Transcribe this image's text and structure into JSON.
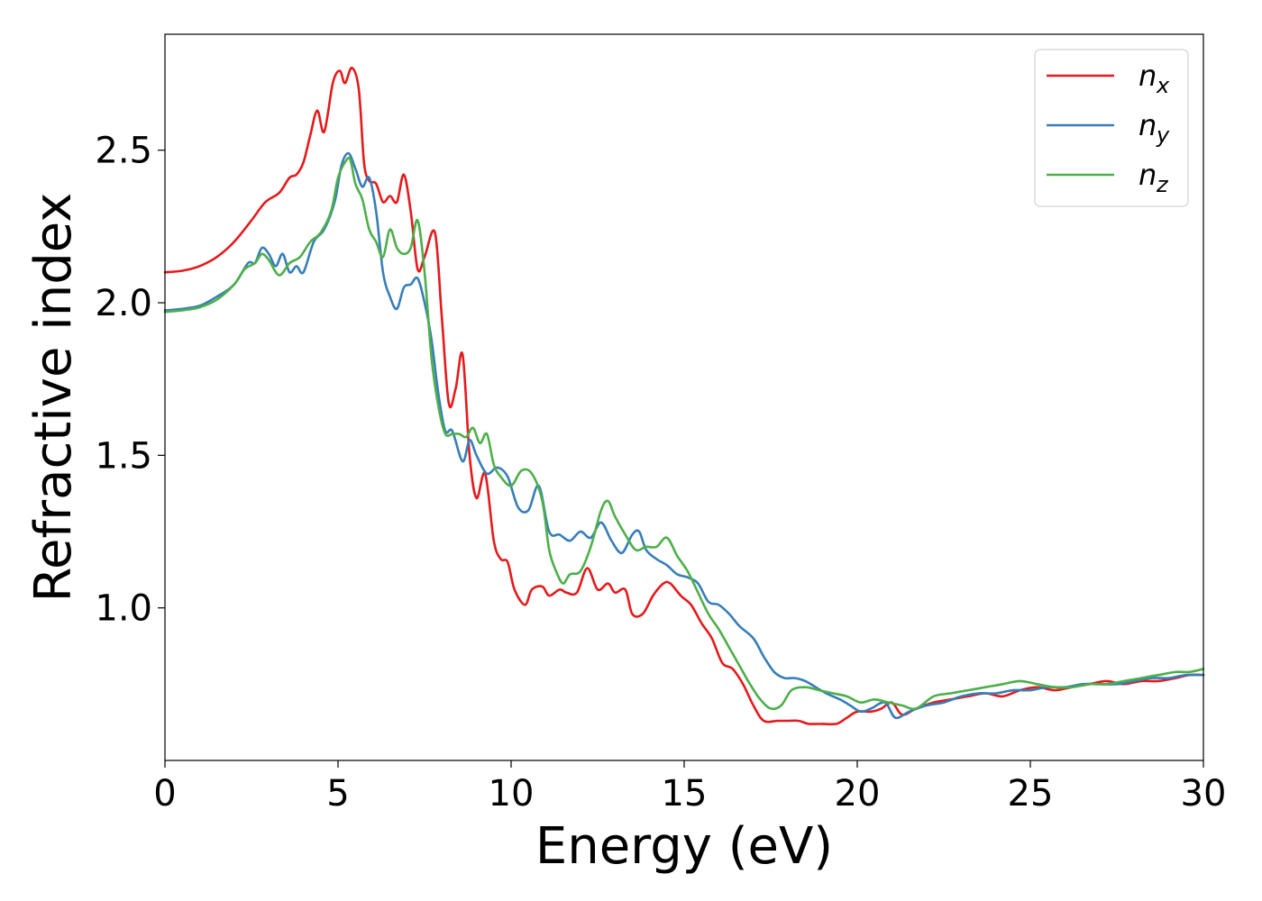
{
  "chart_data": {
    "type": "line",
    "xlabel": "Energy (eV)",
    "ylabel": "Refractive index",
    "xlim": [
      0,
      30
    ],
    "ylim": [
      0.5,
      2.88
    ],
    "x_ticks": [
      0,
      5,
      10,
      15,
      20,
      25,
      30
    ],
    "y_ticks": [
      1.0,
      1.5,
      2.0,
      2.5
    ],
    "x_tick_labels": [
      "0",
      "5",
      "10",
      "15",
      "20",
      "25",
      "30"
    ],
    "y_tick_labels": [
      "1.0",
      "1.5",
      "2.0",
      "2.5"
    ],
    "grid": false,
    "legend_position": "top-right",
    "series": [
      {
        "name": "n",
        "subscript": "x",
        "color": "#e41a1c",
        "points": [
          [
            0,
            2.1
          ],
          [
            0.5,
            2.105
          ],
          [
            1.0,
            2.12
          ],
          [
            1.5,
            2.15
          ],
          [
            2.0,
            2.2
          ],
          [
            2.5,
            2.27
          ],
          [
            2.9,
            2.33
          ],
          [
            3.3,
            2.36
          ],
          [
            3.6,
            2.41
          ],
          [
            3.8,
            2.42
          ],
          [
            4.0,
            2.46
          ],
          [
            4.2,
            2.55
          ],
          [
            4.4,
            2.63
          ],
          [
            4.6,
            2.56
          ],
          [
            4.85,
            2.72
          ],
          [
            5.05,
            2.76
          ],
          [
            5.2,
            2.72
          ],
          [
            5.4,
            2.77
          ],
          [
            5.6,
            2.7
          ],
          [
            5.75,
            2.46
          ],
          [
            5.9,
            2.4
          ],
          [
            6.1,
            2.39
          ],
          [
            6.3,
            2.33
          ],
          [
            6.5,
            2.35
          ],
          [
            6.7,
            2.33
          ],
          [
            6.9,
            2.42
          ],
          [
            7.1,
            2.3
          ],
          [
            7.3,
            2.11
          ],
          [
            7.5,
            2.15
          ],
          [
            7.8,
            2.23
          ],
          [
            8.0,
            1.95
          ],
          [
            8.2,
            1.67
          ],
          [
            8.4,
            1.72
          ],
          [
            8.6,
            1.83
          ],
          [
            8.8,
            1.5
          ],
          [
            9.0,
            1.36
          ],
          [
            9.25,
            1.44
          ],
          [
            9.5,
            1.22
          ],
          [
            9.7,
            1.16
          ],
          [
            9.9,
            1.15
          ],
          [
            10.1,
            1.06
          ],
          [
            10.4,
            1.01
          ],
          [
            10.6,
            1.06
          ],
          [
            10.9,
            1.07
          ],
          [
            11.1,
            1.04
          ],
          [
            11.4,
            1.06
          ],
          [
            11.6,
            1.05
          ],
          [
            11.9,
            1.05
          ],
          [
            12.2,
            1.13
          ],
          [
            12.5,
            1.06
          ],
          [
            12.8,
            1.08
          ],
          [
            13.0,
            1.05
          ],
          [
            13.3,
            1.06
          ],
          [
            13.5,
            0.98
          ],
          [
            13.8,
            0.98
          ],
          [
            14.1,
            1.04
          ],
          [
            14.4,
            1.08
          ],
          [
            14.6,
            1.08
          ],
          [
            14.9,
            1.04
          ],
          [
            15.2,
            1.01
          ],
          [
            15.5,
            0.95
          ],
          [
            15.8,
            0.9
          ],
          [
            16.1,
            0.82
          ],
          [
            16.4,
            0.8
          ],
          [
            16.7,
            0.75
          ],
          [
            17.0,
            0.68
          ],
          [
            17.3,
            0.63
          ],
          [
            17.7,
            0.63
          ],
          [
            18.0,
            0.63
          ],
          [
            18.3,
            0.63
          ],
          [
            18.6,
            0.62
          ],
          [
            19.0,
            0.62
          ],
          [
            19.4,
            0.62
          ],
          [
            19.7,
            0.64
          ],
          [
            20.0,
            0.66
          ],
          [
            20.4,
            0.66
          ],
          [
            20.7,
            0.67
          ],
          [
            21.0,
            0.69
          ],
          [
            21.3,
            0.65
          ],
          [
            21.7,
            0.67
          ],
          [
            22.2,
            0.69
          ],
          [
            22.7,
            0.7
          ],
          [
            23.2,
            0.71
          ],
          [
            23.7,
            0.72
          ],
          [
            24.2,
            0.71
          ],
          [
            24.7,
            0.73
          ],
          [
            25.2,
            0.74
          ],
          [
            25.7,
            0.73
          ],
          [
            26.2,
            0.74
          ],
          [
            26.7,
            0.75
          ],
          [
            27.2,
            0.76
          ],
          [
            27.7,
            0.75
          ],
          [
            28.2,
            0.76
          ],
          [
            28.7,
            0.76
          ],
          [
            29.2,
            0.77
          ],
          [
            29.6,
            0.78
          ],
          [
            30.0,
            0.78
          ]
        ]
      },
      {
        "name": "n",
        "subscript": "y",
        "color": "#377eb8",
        "points": [
          [
            0,
            1.975
          ],
          [
            0.5,
            1.98
          ],
          [
            1.0,
            1.99
          ],
          [
            1.5,
            2.02
          ],
          [
            2.0,
            2.06
          ],
          [
            2.4,
            2.13
          ],
          [
            2.6,
            2.13
          ],
          [
            2.8,
            2.18
          ],
          [
            3.0,
            2.16
          ],
          [
            3.2,
            2.12
          ],
          [
            3.4,
            2.16
          ],
          [
            3.6,
            2.1
          ],
          [
            3.8,
            2.12
          ],
          [
            4.0,
            2.1
          ],
          [
            4.3,
            2.2
          ],
          [
            4.6,
            2.24
          ],
          [
            4.9,
            2.33
          ],
          [
            5.1,
            2.45
          ],
          [
            5.3,
            2.49
          ],
          [
            5.5,
            2.44
          ],
          [
            5.7,
            2.38
          ],
          [
            5.9,
            2.41
          ],
          [
            6.1,
            2.3
          ],
          [
            6.3,
            2.1
          ],
          [
            6.5,
            2.02
          ],
          [
            6.7,
            1.98
          ],
          [
            6.9,
            2.05
          ],
          [
            7.1,
            2.06
          ],
          [
            7.3,
            2.08
          ],
          [
            7.5,
            2.0
          ],
          [
            7.7,
            1.88
          ],
          [
            7.9,
            1.7
          ],
          [
            8.1,
            1.58
          ],
          [
            8.3,
            1.58
          ],
          [
            8.6,
            1.48
          ],
          [
            8.8,
            1.55
          ],
          [
            9.0,
            1.5
          ],
          [
            9.3,
            1.44
          ],
          [
            9.6,
            1.46
          ],
          [
            9.9,
            1.43
          ],
          [
            10.2,
            1.33
          ],
          [
            10.5,
            1.32
          ],
          [
            10.8,
            1.4
          ],
          [
            11.1,
            1.25
          ],
          [
            11.4,
            1.24
          ],
          [
            11.7,
            1.22
          ],
          [
            12.0,
            1.25
          ],
          [
            12.3,
            1.23
          ],
          [
            12.6,
            1.28
          ],
          [
            12.9,
            1.22
          ],
          [
            13.2,
            1.18
          ],
          [
            13.5,
            1.24
          ],
          [
            13.7,
            1.25
          ],
          [
            13.9,
            1.19
          ],
          [
            14.2,
            1.16
          ],
          [
            14.5,
            1.14
          ],
          [
            14.8,
            1.11
          ],
          [
            15.1,
            1.1
          ],
          [
            15.4,
            1.08
          ],
          [
            15.7,
            1.02
          ],
          [
            16.0,
            1.01
          ],
          [
            16.3,
            0.98
          ],
          [
            16.6,
            0.94
          ],
          [
            17.0,
            0.9
          ],
          [
            17.3,
            0.84
          ],
          [
            17.6,
            0.79
          ],
          [
            17.9,
            0.77
          ],
          [
            18.2,
            0.77
          ],
          [
            18.5,
            0.76
          ],
          [
            18.8,
            0.74
          ],
          [
            19.1,
            0.72
          ],
          [
            19.5,
            0.7
          ],
          [
            19.8,
            0.68
          ],
          [
            20.1,
            0.66
          ],
          [
            20.4,
            0.67
          ],
          [
            20.8,
            0.69
          ],
          [
            21.1,
            0.64
          ],
          [
            21.5,
            0.66
          ],
          [
            22.0,
            0.68
          ],
          [
            22.5,
            0.69
          ],
          [
            23.0,
            0.71
          ],
          [
            23.5,
            0.72
          ],
          [
            24.0,
            0.72
          ],
          [
            24.5,
            0.73
          ],
          [
            25.0,
            0.73
          ],
          [
            25.5,
            0.74
          ],
          [
            26.0,
            0.74
          ],
          [
            26.5,
            0.75
          ],
          [
            27.0,
            0.75
          ],
          [
            27.5,
            0.75
          ],
          [
            28.0,
            0.76
          ],
          [
            28.5,
            0.77
          ],
          [
            29.0,
            0.77
          ],
          [
            29.5,
            0.78
          ],
          [
            30.0,
            0.78
          ]
        ]
      },
      {
        "name": "n",
        "subscript": "z",
        "color": "#4daf4a",
        "points": [
          [
            0,
            1.97
          ],
          [
            0.5,
            1.975
          ],
          [
            1.0,
            1.985
          ],
          [
            1.5,
            2.01
          ],
          [
            2.0,
            2.06
          ],
          [
            2.3,
            2.11
          ],
          [
            2.6,
            2.13
          ],
          [
            2.8,
            2.16
          ],
          [
            3.0,
            2.14
          ],
          [
            3.3,
            2.09
          ],
          [
            3.6,
            2.13
          ],
          [
            3.9,
            2.15
          ],
          [
            4.2,
            2.2
          ],
          [
            4.5,
            2.23
          ],
          [
            4.8,
            2.3
          ],
          [
            5.0,
            2.41
          ],
          [
            5.2,
            2.46
          ],
          [
            5.35,
            2.47
          ],
          [
            5.5,
            2.39
          ],
          [
            5.7,
            2.34
          ],
          [
            5.9,
            2.24
          ],
          [
            6.1,
            2.2
          ],
          [
            6.3,
            2.15
          ],
          [
            6.5,
            2.24
          ],
          [
            6.7,
            2.18
          ],
          [
            6.9,
            2.16
          ],
          [
            7.1,
            2.18
          ],
          [
            7.3,
            2.27
          ],
          [
            7.5,
            2.1
          ],
          [
            7.7,
            1.82
          ],
          [
            7.9,
            1.66
          ],
          [
            8.1,
            1.57
          ],
          [
            8.3,
            1.57
          ],
          [
            8.5,
            1.57
          ],
          [
            8.7,
            1.56
          ],
          [
            8.9,
            1.59
          ],
          [
            9.1,
            1.54
          ],
          [
            9.3,
            1.57
          ],
          [
            9.5,
            1.47
          ],
          [
            9.7,
            1.43
          ],
          [
            10.0,
            1.4
          ],
          [
            10.3,
            1.45
          ],
          [
            10.6,
            1.44
          ],
          [
            10.9,
            1.35
          ],
          [
            11.1,
            1.19
          ],
          [
            11.3,
            1.12
          ],
          [
            11.5,
            1.08
          ],
          [
            11.7,
            1.11
          ],
          [
            12.0,
            1.12
          ],
          [
            12.3,
            1.2
          ],
          [
            12.6,
            1.32
          ],
          [
            12.8,
            1.35
          ],
          [
            13.0,
            1.3
          ],
          [
            13.3,
            1.24
          ],
          [
            13.6,
            1.19
          ],
          [
            13.9,
            1.2
          ],
          [
            14.2,
            1.2
          ],
          [
            14.5,
            1.23
          ],
          [
            14.8,
            1.17
          ],
          [
            15.1,
            1.12
          ],
          [
            15.4,
            1.05
          ],
          [
            15.7,
            0.98
          ],
          [
            16.0,
            0.93
          ],
          [
            16.3,
            0.87
          ],
          [
            16.6,
            0.81
          ],
          [
            16.9,
            0.75
          ],
          [
            17.2,
            0.7
          ],
          [
            17.5,
            0.67
          ],
          [
            17.8,
            0.68
          ],
          [
            18.1,
            0.73
          ],
          [
            18.5,
            0.74
          ],
          [
            18.9,
            0.73
          ],
          [
            19.3,
            0.72
          ],
          [
            19.7,
            0.71
          ],
          [
            20.1,
            0.69
          ],
          [
            20.5,
            0.7
          ],
          [
            20.9,
            0.69
          ],
          [
            21.3,
            0.68
          ],
          [
            21.7,
            0.67
          ],
          [
            22.2,
            0.71
          ],
          [
            22.7,
            0.72
          ],
          [
            23.2,
            0.73
          ],
          [
            23.7,
            0.74
          ],
          [
            24.2,
            0.75
          ],
          [
            24.7,
            0.76
          ],
          [
            25.2,
            0.75
          ],
          [
            25.7,
            0.74
          ],
          [
            26.2,
            0.74
          ],
          [
            26.7,
            0.75
          ],
          [
            27.2,
            0.75
          ],
          [
            27.7,
            0.76
          ],
          [
            28.2,
            0.77
          ],
          [
            28.7,
            0.78
          ],
          [
            29.2,
            0.79
          ],
          [
            29.6,
            0.79
          ],
          [
            30.0,
            0.8
          ]
        ]
      }
    ]
  }
}
